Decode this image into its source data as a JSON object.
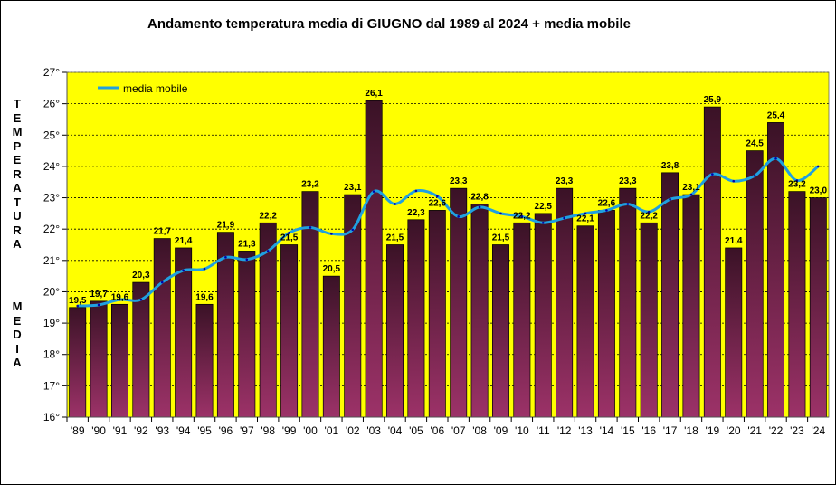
{
  "chart_data": {
    "type": "bar",
    "title": "Andamento temperatura media di GIUGNO dal 1989 al 2024 + media mobile",
    "ylabel": "TEMPERATURA MEDIA",
    "ylabel_lines": [
      "TEMPERATURA",
      "MEDIA"
    ],
    "xlabel": "",
    "ylim": [
      16,
      27
    ],
    "y_ticks": [
      16,
      17,
      18,
      19,
      20,
      21,
      22,
      23,
      24,
      25,
      26,
      27
    ],
    "y_tick_labels": [
      "16°",
      "17°",
      "18°",
      "19°",
      "20°",
      "21°",
      "22°",
      "23°",
      "24°",
      "25°",
      "26°",
      "27°"
    ],
    "grid": true,
    "legend": {
      "position": "top-left",
      "entries": [
        "media mobile"
      ]
    },
    "categories": [
      "'89",
      "'90",
      "'91",
      "'92",
      "'93",
      "'94",
      "'95",
      "'96",
      "'97",
      "'98",
      "'99",
      "'00",
      "'01",
      "'02",
      "'03",
      "'04",
      "'05",
      "'06",
      "'07",
      "'08",
      "'09",
      "'10",
      "'11",
      "'12",
      "'13",
      "'14",
      "'15",
      "'16",
      "'17",
      "'18",
      "'19",
      "'20",
      "'21",
      "'22",
      "'23",
      "'24"
    ],
    "series": [
      {
        "name": "temperatura media",
        "type": "bar",
        "values": [
          19.5,
          19.7,
          19.6,
          20.3,
          21.7,
          21.4,
          19.6,
          21.9,
          21.3,
          22.2,
          21.5,
          23.2,
          20.5,
          23.1,
          26.1,
          21.5,
          22.3,
          22.6,
          23.3,
          22.8,
          21.5,
          22.2,
          22.5,
          23.3,
          22.1,
          22.6,
          23.3,
          22.2,
          23.8,
          23.1,
          25.9,
          21.4,
          24.5,
          25.4,
          23.2,
          23.0
        ],
        "labels": [
          "19,5",
          "19,7",
          "19,6",
          "20,3",
          "21,7",
          "21,4",
          "19,6",
          "21,9",
          "21,3",
          "22,2",
          "21,5",
          "23,2",
          "20,5",
          "23,1",
          "26,1",
          "21,5",
          "22,3",
          "22,6",
          "23,3",
          "22,8",
          "21,5",
          "22,2",
          "22,5",
          "23,3",
          "22,1",
          "22,6",
          "23,3",
          "22,2",
          "23,8",
          "23,1",
          "25,9",
          "21,4",
          "24,5",
          "25,4",
          "23,2",
          "23,0"
        ]
      },
      {
        "name": "media mobile",
        "type": "line",
        "values": [
          19.55,
          19.58,
          19.75,
          19.75,
          20.3,
          20.68,
          20.73,
          21.1,
          21.03,
          21.3,
          21.88,
          22.05,
          21.85,
          21.98,
          23.2,
          22.8,
          23.22,
          23.05,
          22.4,
          22.7,
          22.5,
          22.4,
          22.2,
          22.35,
          22.5,
          22.6,
          22.8,
          22.55,
          22.95,
          23.1,
          23.75,
          23.53,
          23.7,
          24.25,
          23.55,
          24.0
        ]
      }
    ],
    "colors": {
      "plot_background": "#ffff00",
      "bar_top": "#3a1226",
      "bar_bottom": "#9c3268",
      "line": "#1fa0e0",
      "line_markers": "#0000aa",
      "gridline": "#000000"
    }
  }
}
